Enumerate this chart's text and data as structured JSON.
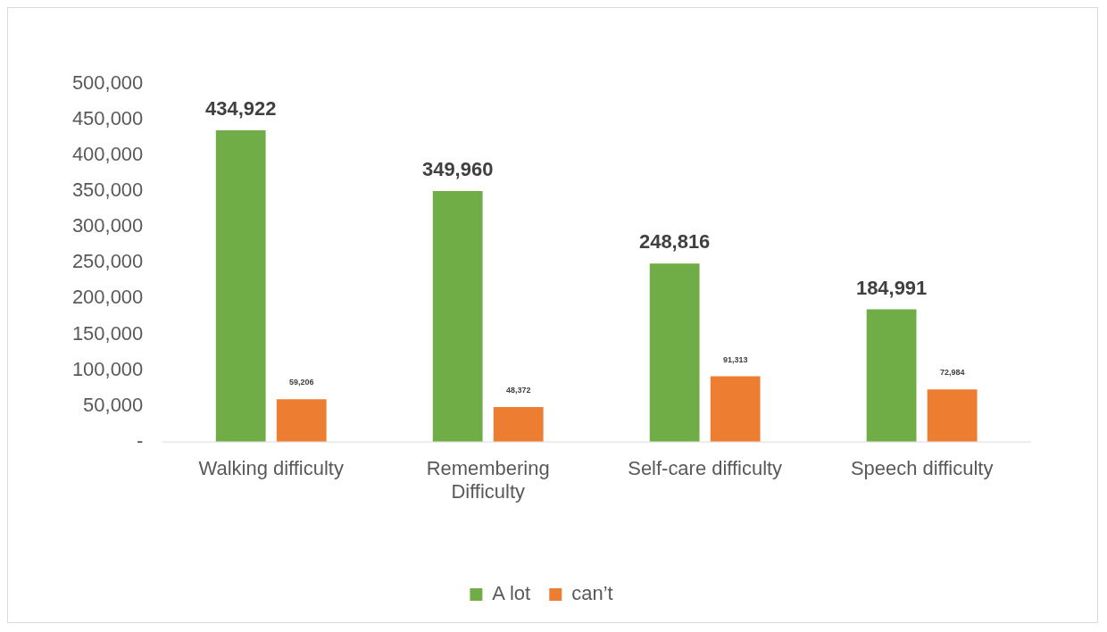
{
  "chart_data": {
    "type": "bar",
    "categories": [
      "Walking difficulty",
      "Remembering Difficulty",
      "Self-care difficulty",
      "Speech difficulty"
    ],
    "series": [
      {
        "name": "A lot",
        "color": "#70ad47",
        "values": [
          434922,
          349960,
          248816,
          184991
        ],
        "value_labels": [
          "434,922",
          "349,960",
          "248,816",
          "184,991"
        ]
      },
      {
        "name": "can’t",
        "color": "#ed7d31",
        "values": [
          59206,
          48372,
          91313,
          72984
        ],
        "value_labels": [
          "59,206",
          "48,372",
          "91,313",
          "72,984"
        ]
      }
    ],
    "ylim": [
      0,
      500000
    ],
    "yticks": [
      {
        "value": 0,
        "label": "-"
      },
      {
        "value": 50000,
        "label": "50,000"
      },
      {
        "value": 100000,
        "label": "100,000"
      },
      {
        "value": 150000,
        "label": "150,000"
      },
      {
        "value": 200000,
        "label": "200,000"
      },
      {
        "value": 250000,
        "label": "250,000"
      },
      {
        "value": 300000,
        "label": "300,000"
      },
      {
        "value": 350000,
        "label": "350,000"
      },
      {
        "value": 400000,
        "label": "400,000"
      },
      {
        "value": 450000,
        "label": "450,000"
      },
      {
        "value": 500000,
        "label": "500,000"
      }
    ],
    "grid": false,
    "legend": "bottom"
  }
}
